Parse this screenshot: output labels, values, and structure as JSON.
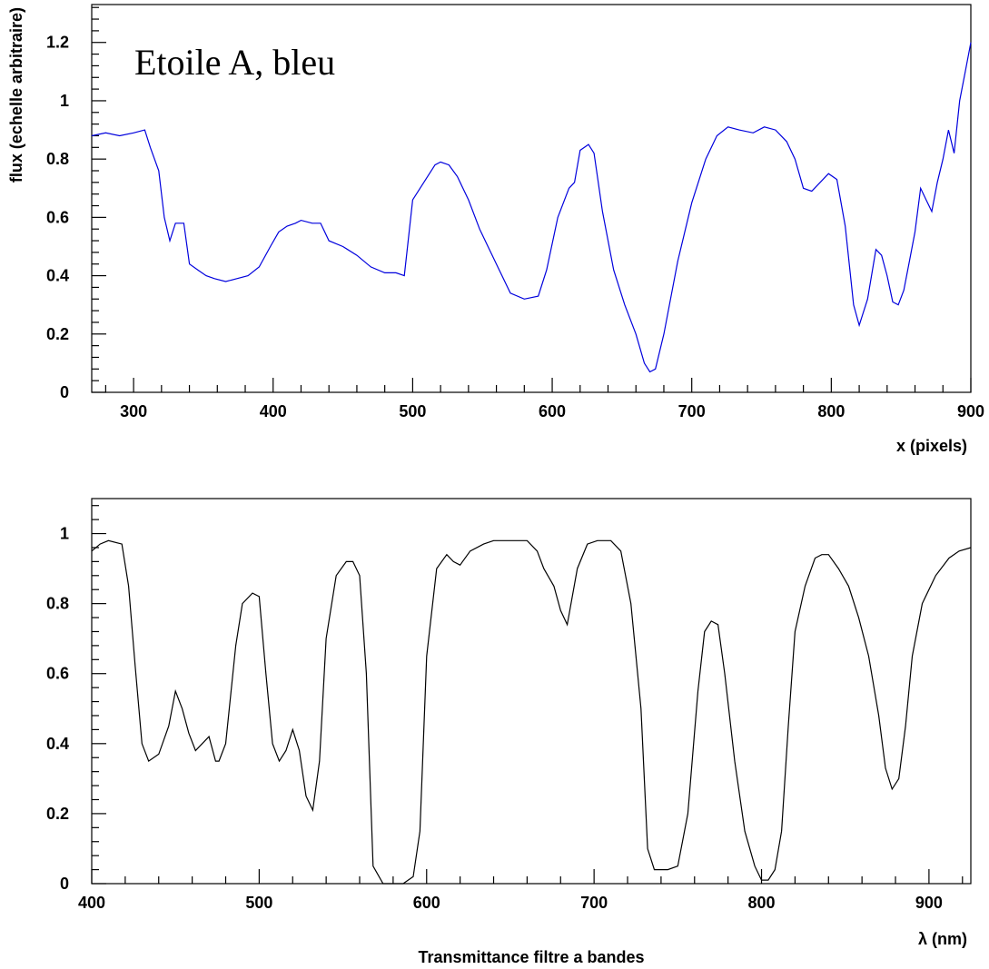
{
  "chart_data": [
    {
      "type": "line",
      "annotation": "Etoile A, bleu",
      "xlabel": "x (pixels)",
      "ylabel": "flux (echelle arbitraire)",
      "xlim": [
        270,
        900
      ],
      "ylim": [
        0,
        1.33
      ],
      "xticks": [
        300,
        400,
        500,
        600,
        700,
        800,
        900
      ],
      "xtick_labels": [
        "300",
        "400",
        "500",
        "600",
        "700",
        "800",
        "900"
      ],
      "yticks": [
        0,
        0.2,
        0.4,
        0.6,
        0.8,
        1,
        1.2
      ],
      "ytick_labels": [
        "0",
        "0.2",
        "0.4",
        "0.6",
        "0.8",
        "1",
        "1.2"
      ],
      "series": [
        {
          "color": "#0000dd",
          "x": [
            270,
            280,
            290,
            300,
            308,
            312,
            318,
            322,
            326,
            330,
            336,
            340,
            346,
            352,
            358,
            366,
            374,
            382,
            390,
            398,
            404,
            410,
            416,
            420,
            428,
            434,
            440,
            450,
            460,
            470,
            480,
            488,
            494,
            500,
            508,
            516,
            520,
            526,
            532,
            540,
            548,
            556,
            562,
            570,
            580,
            590,
            596,
            604,
            612,
            616,
            620,
            626,
            630,
            636,
            644,
            652,
            660,
            666,
            670,
            674,
            680,
            690,
            700,
            710,
            718,
            726,
            734,
            744,
            752,
            760,
            768,
            774,
            780,
            786,
            792,
            798,
            804,
            810,
            816,
            820,
            826,
            832,
            836,
            840,
            844,
            848,
            852,
            856,
            860,
            864,
            868,
            872,
            876,
            880,
            884,
            888,
            892,
            896,
            900
          ],
          "y": [
            0.88,
            0.89,
            0.88,
            0.89,
            0.9,
            0.84,
            0.76,
            0.6,
            0.52,
            0.58,
            0.58,
            0.44,
            0.42,
            0.4,
            0.39,
            0.38,
            0.39,
            0.4,
            0.43,
            0.5,
            0.55,
            0.57,
            0.58,
            0.59,
            0.58,
            0.58,
            0.52,
            0.5,
            0.47,
            0.43,
            0.41,
            0.41,
            0.4,
            0.66,
            0.72,
            0.78,
            0.79,
            0.78,
            0.74,
            0.66,
            0.56,
            0.48,
            0.42,
            0.34,
            0.32,
            0.33,
            0.42,
            0.6,
            0.7,
            0.72,
            0.83,
            0.85,
            0.82,
            0.62,
            0.42,
            0.3,
            0.2,
            0.1,
            0.07,
            0.08,
            0.2,
            0.45,
            0.65,
            0.8,
            0.88,
            0.91,
            0.9,
            0.89,
            0.91,
            0.9,
            0.86,
            0.8,
            0.7,
            0.69,
            0.72,
            0.75,
            0.73,
            0.57,
            0.3,
            0.23,
            0.32,
            0.49,
            0.47,
            0.4,
            0.31,
            0.3,
            0.35,
            0.45,
            0.55,
            0.7,
            0.66,
            0.62,
            0.72,
            0.8,
            0.9,
            0.82,
            1.0,
            1.1,
            1.2
          ]
        }
      ]
    },
    {
      "type": "line",
      "xlabel": "λ (nm)",
      "caption": "Transmittance filtre a bandes",
      "xlim": [
        400,
        925
      ],
      "ylim": [
        0,
        1.1
      ],
      "xticks": [
        400,
        500,
        600,
        700,
        800,
        900
      ],
      "xtick_labels": [
        "400",
        "500",
        "600",
        "700",
        "800",
        "900"
      ],
      "yticks": [
        0,
        0.2,
        0.4,
        0.6,
        0.8,
        1
      ],
      "ytick_labels": [
        "0",
        "0.2",
        "0.4",
        "0.6",
        "0.8",
        "1"
      ],
      "series": [
        {
          "color": "#000000",
          "x": [
            400,
            405,
            410,
            418,
            422,
            426,
            430,
            434,
            440,
            446,
            450,
            454,
            458,
            462,
            466,
            470,
            474,
            476,
            480,
            486,
            490,
            496,
            500,
            504,
            508,
            512,
            516,
            520,
            524,
            528,
            532,
            536,
            540,
            546,
            552,
            556,
            560,
            564,
            568,
            574,
            580,
            586,
            592,
            596,
            600,
            606,
            612,
            616,
            620,
            626,
            634,
            640,
            650,
            660,
            666,
            670,
            676,
            680,
            684,
            690,
            696,
            702,
            710,
            716,
            722,
            728,
            732,
            736,
            740,
            744,
            750,
            756,
            762,
            766,
            770,
            774,
            778,
            784,
            790,
            796,
            800,
            804,
            808,
            812,
            816,
            820,
            826,
            832,
            836,
            840,
            846,
            852,
            858,
            864,
            870,
            874,
            878,
            882,
            886,
            890,
            896,
            904,
            912,
            918,
            925
          ],
          "y": [
            0.95,
            0.97,
            0.98,
            0.97,
            0.85,
            0.62,
            0.4,
            0.35,
            0.37,
            0.45,
            0.55,
            0.5,
            0.43,
            0.38,
            0.4,
            0.42,
            0.35,
            0.35,
            0.4,
            0.68,
            0.8,
            0.83,
            0.82,
            0.6,
            0.4,
            0.35,
            0.38,
            0.44,
            0.38,
            0.25,
            0.21,
            0.35,
            0.7,
            0.88,
            0.92,
            0.92,
            0.88,
            0.6,
            0.05,
            0.0,
            0.0,
            0.0,
            0.02,
            0.15,
            0.65,
            0.9,
            0.94,
            0.92,
            0.91,
            0.95,
            0.97,
            0.98,
            0.98,
            0.98,
            0.95,
            0.9,
            0.85,
            0.78,
            0.74,
            0.9,
            0.97,
            0.98,
            0.98,
            0.95,
            0.8,
            0.5,
            0.1,
            0.04,
            0.04,
            0.04,
            0.05,
            0.2,
            0.55,
            0.72,
            0.75,
            0.74,
            0.6,
            0.35,
            0.15,
            0.05,
            0.01,
            0.01,
            0.04,
            0.15,
            0.45,
            0.72,
            0.85,
            0.93,
            0.94,
            0.94,
            0.9,
            0.85,
            0.76,
            0.65,
            0.48,
            0.33,
            0.27,
            0.3,
            0.45,
            0.65,
            0.8,
            0.88,
            0.93,
            0.95,
            0.96
          ]
        }
      ]
    }
  ]
}
